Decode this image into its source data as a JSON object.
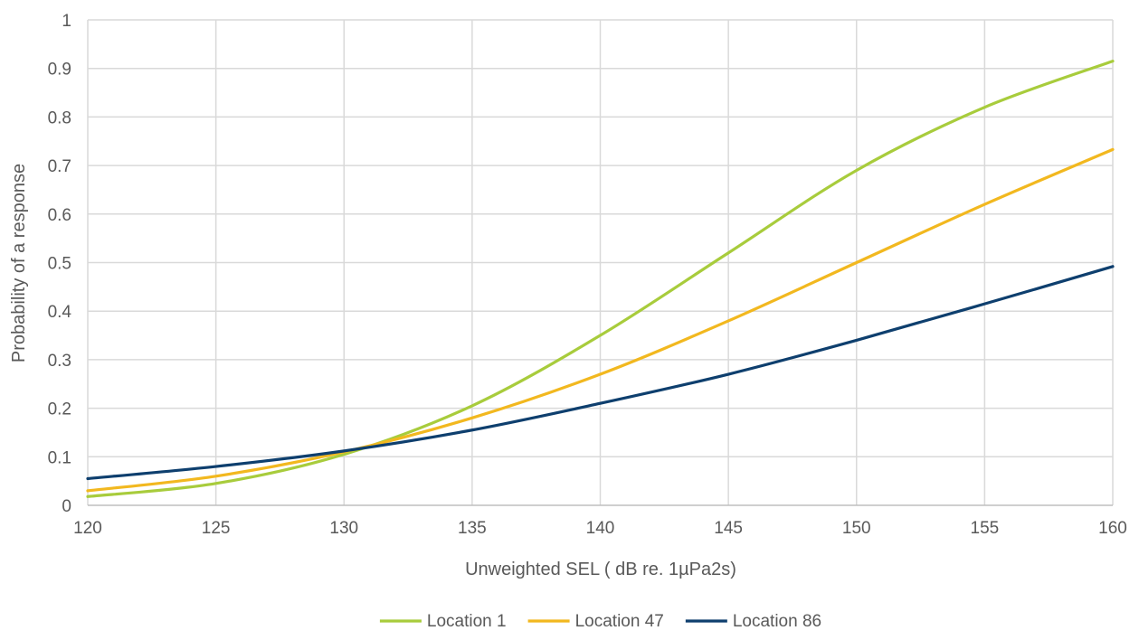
{
  "chart_data": {
    "type": "line",
    "title": "",
    "xlabel": "Unweighted SEL ( dB re. 1µPa2s)",
    "ylabel": "Probability of a response",
    "xlim": [
      120,
      160
    ],
    "ylim": [
      0,
      1
    ],
    "x_ticks": [
      "120",
      "125",
      "130",
      "135",
      "140",
      "145",
      "150",
      "155",
      "160"
    ],
    "y_ticks": [
      "0",
      "0.1",
      "0.2",
      "0.3",
      "0.4",
      "0.5",
      "0.6",
      "0.7",
      "0.8",
      "0.9",
      "1"
    ],
    "grid": true,
    "legend_position": "bottom",
    "x": [
      120,
      125,
      130,
      135,
      140,
      145,
      150,
      155,
      160
    ],
    "series": [
      {
        "name": "Location 1",
        "color": "#a8cc3c",
        "values": [
          0.018,
          0.045,
          0.105,
          0.205,
          0.35,
          0.52,
          0.69,
          0.82,
          0.915
        ]
      },
      {
        "name": "Location 47",
        "color": "#f2b81f",
        "values": [
          0.03,
          0.06,
          0.11,
          0.18,
          0.27,
          0.38,
          0.5,
          0.62,
          0.733
        ]
      },
      {
        "name": "Location 86",
        "color": "#0e3f6e",
        "values": [
          0.055,
          0.08,
          0.112,
          0.155,
          0.21,
          0.27,
          0.34,
          0.415,
          0.492
        ]
      }
    ]
  }
}
